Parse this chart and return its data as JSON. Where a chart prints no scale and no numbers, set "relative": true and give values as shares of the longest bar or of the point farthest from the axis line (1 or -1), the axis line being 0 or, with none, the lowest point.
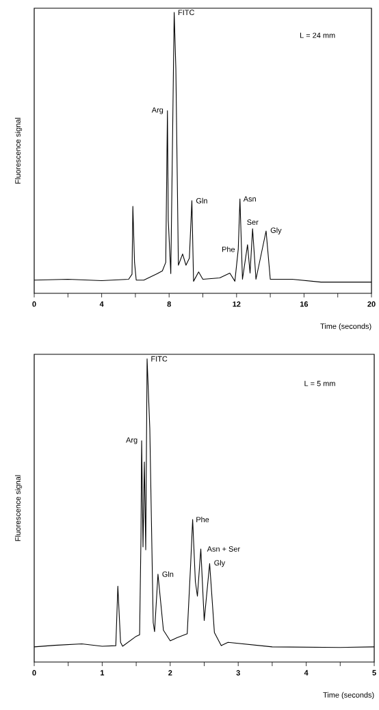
{
  "chart_data": [
    {
      "type": "line",
      "relative": true,
      "color": "#000000",
      "marker": "none",
      "tick_labels": "x",
      "xlabel": "Time (seconds)",
      "ylabel": "Fluorescence signal",
      "xlim": [
        0,
        20
      ],
      "xticks": [
        0,
        {
          "value": 2,
          "label": null
        },
        4,
        {
          "value": 6,
          "label": null
        },
        8,
        {
          "value": 10,
          "label": null
        },
        12,
        {
          "value": 14,
          "label": null
        },
        16,
        {
          "value": 18,
          "label": null
        },
        20
      ],
      "x": [
        0,
        2,
        4,
        5.6,
        5.8,
        5.85,
        5.95,
        6.05,
        6.5,
        7.3,
        7.6,
        7.8,
        7.9,
        7.95,
        8.1,
        8.3,
        8.4,
        8.55,
        8.8,
        9.0,
        9.2,
        9.35,
        9.45,
        9.75,
        10,
        11,
        11.6,
        11.9,
        12.1,
        12.2,
        12.35,
        12.65,
        12.8,
        12.95,
        13.15,
        13.75,
        14,
        15.3,
        17,
        20
      ],
      "values": [
        0.047,
        0.05,
        0.045,
        0.05,
        0.068,
        0.31,
        0.11,
        0.047,
        0.047,
        0.07,
        0.08,
        0.11,
        0.65,
        0.26,
        0.07,
        1.0,
        0.8,
        0.1,
        0.14,
        0.1,
        0.125,
        0.33,
        0.043,
        0.076,
        0.05,
        0.055,
        0.072,
        0.043,
        0.157,
        0.336,
        0.05,
        0.173,
        0.072,
        0.23,
        0.05,
        0.222,
        0.05,
        0.05,
        0.04,
        0.04
      ],
      "annotations": [
        {
          "text": "FITC",
          "x": 8.3,
          "y": 1.0
        },
        {
          "text": "Arg",
          "x": 7.9,
          "y": 0.65
        },
        {
          "text": "Gln",
          "x": 9.35,
          "y": 0.33
        },
        {
          "text": "Phe",
          "x": 12.1,
          "y": 0.157
        },
        {
          "text": "Asn",
          "x": 12.2,
          "y": 0.336
        },
        {
          "text": "Ser",
          "x": 12.95,
          "y": 0.23
        },
        {
          "text": "Gly",
          "x": 13.75,
          "y": 0.222
        },
        "L = 24 mm"
      ]
    },
    {
      "type": "line",
      "relative": true,
      "color": "#000000",
      "marker": "none",
      "tick_labels": "x",
      "xlabel": "Time (seconds)",
      "ylabel": "Fluorescence signal",
      "xlim": [
        0,
        5
      ],
      "xticks": [
        0,
        {
          "value": 0.5,
          "label": null
        },
        1,
        {
          "value": 1.5,
          "label": null
        },
        2,
        {
          "value": 2.5,
          "label": null
        },
        3,
        {
          "value": 3.5,
          "label": null
        },
        4,
        {
          "value": 4.5,
          "label": null
        },
        5
      ],
      "x": [
        0,
        0.3,
        0.7,
        1.0,
        1.2,
        1.23,
        1.27,
        1.3,
        1.5,
        1.55,
        1.57,
        1.58,
        1.6,
        1.62,
        1.64,
        1.66,
        1.7,
        1.75,
        1.77,
        1.82,
        1.9,
        2.0,
        2.1,
        2.25,
        2.3,
        2.33,
        2.37,
        2.4,
        2.45,
        2.5,
        2.58,
        2.65,
        2.75,
        2.85,
        3.5,
        4.5,
        5
      ],
      "values": [
        0.05,
        0.055,
        0.06,
        0.052,
        0.054,
        0.25,
        0.065,
        0.052,
        0.085,
        0.09,
        0.41,
        0.73,
        0.38,
        0.66,
        0.37,
        1.0,
        0.77,
        0.13,
        0.1,
        0.29,
        0.105,
        0.07,
        0.08,
        0.093,
        0.32,
        0.47,
        0.265,
        0.217,
        0.373,
        0.137,
        0.325,
        0.097,
        0.054,
        0.065,
        0.05,
        0.048,
        0.05
      ],
      "annotations": [
        {
          "text": "FITC",
          "x": 1.66,
          "y": 1.0
        },
        {
          "text": "Arg",
          "x": 1.58,
          "y": 0.73
        },
        {
          "text": "Phe",
          "x": 2.33,
          "y": 0.47
        },
        {
          "text": "Asn + Ser",
          "x": 2.45,
          "y": 0.373
        },
        {
          "text": "Gln",
          "x": 1.82,
          "y": 0.29
        },
        {
          "text": "Gly",
          "x": 2.58,
          "y": 0.325
        },
        "L = 5 mm"
      ]
    }
  ]
}
